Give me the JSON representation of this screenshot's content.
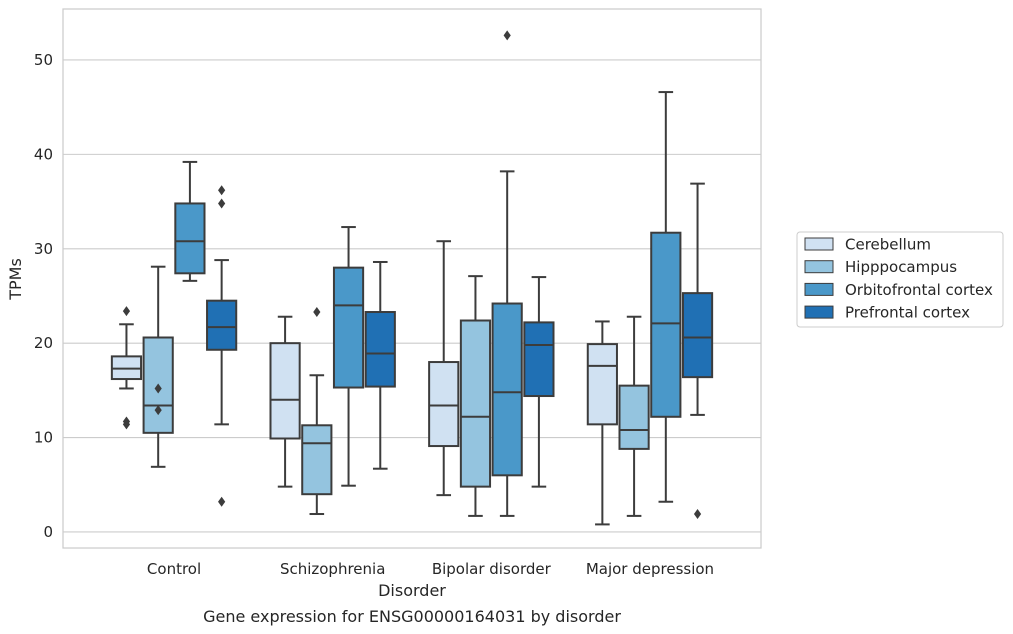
{
  "chart_data": {
    "type": "box",
    "caption": "Gene expression for ENSG00000164031 by disorder",
    "xlabel": "Disorder",
    "ylabel": "TPMs",
    "ylim": [
      -1.7,
      55.4
    ],
    "yticks": [
      0,
      10,
      20,
      30,
      40,
      50
    ],
    "grid": "horizontal",
    "legend_position": "right",
    "categories": [
      "Control",
      "Schizophrenia",
      "Bipolar disorder",
      "Major depression"
    ],
    "series": [
      {
        "name": "Cerebellum",
        "color": "#d0e1f2",
        "boxes": [
          {
            "whisker_low": 15.2,
            "q1": 16.2,
            "median": 17.3,
            "q3": 18.6,
            "whisker_high": 22.0,
            "outliers": [
              23.4,
              11.7,
              11.4
            ]
          },
          {
            "whisker_low": 4.8,
            "q1": 9.9,
            "median": 14.0,
            "q3": 20.0,
            "whisker_high": 22.8,
            "outliers": []
          },
          {
            "whisker_low": 3.9,
            "q1": 9.1,
            "median": 13.4,
            "q3": 18.0,
            "whisker_high": 30.8,
            "outliers": []
          },
          {
            "whisker_low": 0.8,
            "q1": 11.4,
            "median": 17.6,
            "q3": 19.9,
            "whisker_high": 22.3,
            "outliers": []
          }
        ]
      },
      {
        "name": "Hipppocampus",
        "color": "#94c4df",
        "boxes": [
          {
            "whisker_low": 6.9,
            "q1": 10.5,
            "median": 13.4,
            "q3": 20.6,
            "whisker_high": 28.1,
            "outliers": [
              15.2,
              12.9
            ]
          },
          {
            "whisker_low": 1.9,
            "q1": 4.0,
            "median": 9.4,
            "q3": 11.3,
            "whisker_high": 16.6,
            "outliers": [
              23.3
            ]
          },
          {
            "whisker_low": 1.7,
            "q1": 4.8,
            "median": 12.2,
            "q3": 22.4,
            "whisker_high": 27.1,
            "outliers": []
          },
          {
            "whisker_low": 1.7,
            "q1": 8.8,
            "median": 10.8,
            "q3": 15.5,
            "whisker_high": 22.8,
            "outliers": []
          }
        ]
      },
      {
        "name": "Orbitofrontal cortex",
        "color": "#4a98c9",
        "boxes": [
          {
            "whisker_low": 26.6,
            "q1": 27.4,
            "median": 30.8,
            "q3": 34.8,
            "whisker_high": 39.2,
            "outliers": []
          },
          {
            "whisker_low": 4.9,
            "q1": 15.3,
            "median": 24.0,
            "q3": 28.0,
            "whisker_high": 32.3,
            "outliers": []
          },
          {
            "whisker_low": 1.7,
            "q1": 6.0,
            "median": 14.8,
            "q3": 24.2,
            "whisker_high": 38.2,
            "outliers": [
              52.6
            ]
          },
          {
            "whisker_low": 3.2,
            "q1": 12.2,
            "median": 22.1,
            "q3": 31.7,
            "whisker_high": 46.6,
            "outliers": []
          }
        ]
      },
      {
        "name": "Prefrontal cortex",
        "color": "#2070b4",
        "boxes": [
          {
            "whisker_low": 11.4,
            "q1": 19.3,
            "median": 21.7,
            "q3": 24.5,
            "whisker_high": 28.8,
            "outliers": [
              36.2,
              34.8,
              3.2
            ]
          },
          {
            "whisker_low": 6.7,
            "q1": 15.4,
            "median": 18.9,
            "q3": 23.3,
            "whisker_high": 28.6,
            "outliers": []
          },
          {
            "whisker_low": 4.8,
            "q1": 14.4,
            "median": 19.8,
            "q3": 22.2,
            "whisker_high": 27.0,
            "outliers": []
          },
          {
            "whisker_low": 12.4,
            "q1": 16.4,
            "median": 20.6,
            "q3": 25.3,
            "whisker_high": 36.9,
            "outliers": [
              1.9
            ]
          }
        ]
      }
    ]
  }
}
